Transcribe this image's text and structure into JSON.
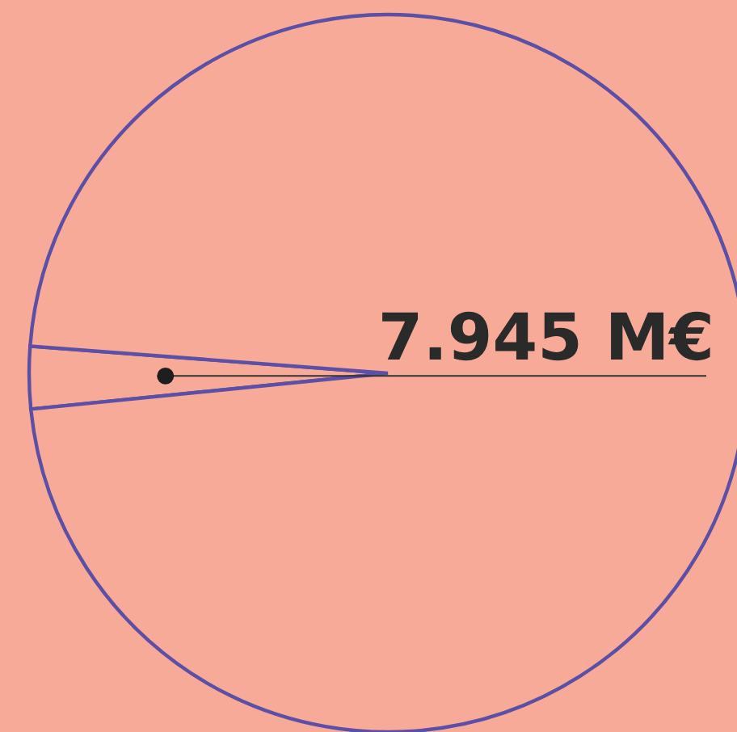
{
  "chart_data": {
    "type": "pie",
    "categories": [
      null,
      null
    ],
    "values": [
      7.945,
      275.8
    ],
    "colors": [
      "#f8aa98",
      "#f8aa98"
    ],
    "value_labels": [
      "7.945 M€",
      null
    ]
  }
}
